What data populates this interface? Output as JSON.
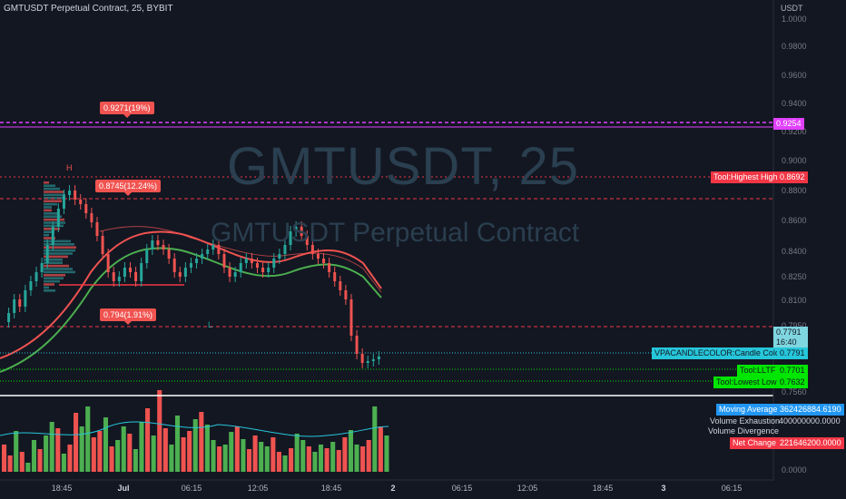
{
  "header": {
    "title": "GMTUSDT Perpetual Contract, 25, BYBIT"
  },
  "watermark": {
    "symbol": "GMTUSDT, 25",
    "name": "GMTUSDT Perpetual Contract"
  },
  "price_axis": {
    "unit": "USDT",
    "ticks": [
      "1.0000",
      "0.9800",
      "0.9600",
      "0.9400",
      "0.9200",
      "0.9000",
      "0.8800",
      "0.8600",
      "0.8400",
      "0.8250",
      "0.8100",
      "0.7950",
      "0.7560"
    ],
    "volume_tick": "0.0000"
  },
  "time_axis": {
    "ticks": [
      "18:45",
      "Jul",
      "06:15",
      "12:05",
      "18:45",
      "2",
      "06:15",
      "12:05",
      "18:45",
      "3",
      "06:15"
    ]
  },
  "callouts": {
    "top_target": "0.9271(19%)",
    "upper_target": "0.8745(12.24%)",
    "lower_target": "0.794(1.91%)"
  },
  "markers": {
    "high": "H",
    "low": "L"
  },
  "price_tags": {
    "pink_level": {
      "value": "0.9254",
      "color": "#e040fb"
    },
    "highest_high": {
      "label": "Tool:Highest High",
      "value": "0.8692",
      "color": "#f23645"
    },
    "current_price": {
      "value": "0.7791",
      "countdown": "16:40",
      "color": "#7fd6e0"
    },
    "candle_colored": {
      "label": "VPACANDLECOLOR:Candle Colored",
      "value": "0.7791",
      "color": "#26c6da"
    },
    "lltf": {
      "label": "Tool:LLTF",
      "value": "0.7701",
      "color": "#00e600"
    },
    "lowest_low": {
      "label": "Tool:Lowest Low",
      "value": "0.7632",
      "color": "#00e600"
    }
  },
  "volume_panel": {
    "moving_average": {
      "label": "Moving Average",
      "value": "362426884.6190",
      "color": "#2196f3"
    },
    "volume_exhaustion": {
      "label": "Volume Exhaustion",
      "value": "400000000.0000"
    },
    "volume_divergence": {
      "label": "Volume Divergence",
      "value": ""
    },
    "net_change": {
      "label": "Net Change",
      "value": "221646200.0000",
      "color": "#f23645"
    }
  },
  "colors": {
    "background": "#131722",
    "bull": "#26a69a",
    "bear": "#ef5350",
    "vol_up": "#4caf50",
    "vol_down": "#ef5350",
    "band_upper": "#ef5350",
    "band_lower": "#4caf50"
  }
}
